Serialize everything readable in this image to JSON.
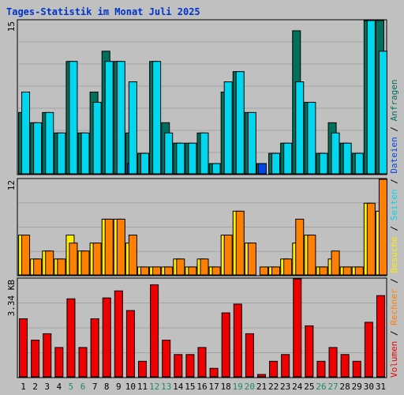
{
  "title": "Tages-Statistik im Monat Juli 2025",
  "colors": {
    "background": "#c0c0c0",
    "title": "#0033cc",
    "anfragen": "#006f5b",
    "dateien": "#0045e6",
    "seiten": "#00d7ee",
    "besuche": "#ffee00",
    "rechner": "#ff8000",
    "volumen": "#ee0000",
    "weekend_day_label": "#1f8a6b",
    "weekday_label": "#000000"
  },
  "axis_labels": {
    "top_max": "15",
    "mid_max": "12",
    "bottom_max": "3.34 KB"
  },
  "legend": {
    "anfragen": "Anfragen",
    "dateien": "Dateien",
    "seiten": "Seiten",
    "besuche": "Besuche",
    "rechner": "Rechner",
    "volumen": "Volumen",
    "separator": " / "
  },
  "chart_data": [
    {
      "type": "bar",
      "panel": "top",
      "categories": [
        "1",
        "2",
        "3",
        "4",
        "5",
        "6",
        "7",
        "8",
        "9",
        "10",
        "11",
        "12",
        "13",
        "14",
        "15",
        "16",
        "17",
        "18",
        "19",
        "20",
        "21",
        "22",
        "23",
        "24",
        "25",
        "26",
        "27",
        "28",
        "29",
        "30",
        "31"
      ],
      "weekend_days": [
        5,
        6,
        12,
        13,
        19,
        20,
        26,
        27
      ],
      "ylim": [
        0,
        15
      ],
      "series": [
        {
          "name": "Anfragen",
          "values": [
            6,
            5,
            6,
            4,
            11,
            4,
            8,
            12,
            11,
            4,
            2,
            11,
            5,
            3,
            3,
            4,
            1,
            8,
            10,
            6,
            1,
            2,
            3,
            14,
            7,
            2,
            5,
            3,
            2,
            15,
            15
          ]
        },
        {
          "name": "Dateien",
          "values": [
            0,
            0,
            0,
            0,
            0,
            0,
            0,
            0,
            0,
            1,
            0,
            0,
            0,
            0,
            0,
            0,
            0,
            0,
            0,
            0,
            1,
            0,
            0,
            0,
            0,
            0,
            0,
            0,
            0,
            0,
            0
          ]
        },
        {
          "name": "Seiten",
          "values": [
            8,
            5,
            6,
            4,
            11,
            4,
            7,
            11,
            11,
            9,
            2,
            11,
            4,
            3,
            3,
            4,
            1,
            9,
            10,
            6,
            0,
            2,
            3,
            9,
            7,
            2,
            4,
            3,
            2,
            15,
            12
          ]
        }
      ]
    },
    {
      "type": "bar",
      "panel": "middle",
      "categories": [
        "1",
        "2",
        "3",
        "4",
        "5",
        "6",
        "7",
        "8",
        "9",
        "10",
        "11",
        "12",
        "13",
        "14",
        "15",
        "16",
        "17",
        "18",
        "19",
        "20",
        "21",
        "22",
        "23",
        "24",
        "25",
        "26",
        "27",
        "28",
        "29",
        "30",
        "31"
      ],
      "ylim": [
        0,
        12
      ],
      "series": [
        {
          "name": "Besuche",
          "values": [
            5,
            2,
            3,
            2,
            5,
            3,
            4,
            7,
            7,
            4,
            1,
            1,
            1,
            2,
            1,
            2,
            1,
            5,
            8,
            4,
            0,
            1,
            2,
            4,
            5,
            1,
            2,
            1,
            1,
            9,
            8
          ]
        },
        {
          "name": "Rechner",
          "values": [
            5,
            2,
            3,
            2,
            4,
            3,
            4,
            7,
            7,
            5,
            1,
            1,
            1,
            2,
            1,
            2,
            1,
            5,
            8,
            4,
            1,
            1,
            2,
            7,
            5,
            1,
            3,
            1,
            1,
            9,
            12
          ]
        }
      ]
    },
    {
      "type": "bar",
      "panel": "bottom",
      "categories": [
        "1",
        "2",
        "3",
        "4",
        "5",
        "6",
        "7",
        "8",
        "9",
        "10",
        "11",
        "12",
        "13",
        "14",
        "15",
        "16",
        "17",
        "18",
        "19",
        "20",
        "21",
        "22",
        "23",
        "24",
        "25",
        "26",
        "27",
        "28",
        "29",
        "30",
        "31"
      ],
      "ylim": [
        0,
        3.34
      ],
      "ylabel": "KB",
      "series": [
        {
          "name": "Volumen",
          "values": [
            1.98,
            1.25,
            1.47,
            1.0,
            2.66,
            1.0,
            1.98,
            2.69,
            2.93,
            2.26,
            0.53,
            3.14,
            1.25,
            0.76,
            0.76,
            1.0,
            0.29,
            2.18,
            2.48,
            1.47,
            0.08,
            0.53,
            0.76,
            3.38,
            1.74,
            0.53,
            1.0,
            0.76,
            0.53,
            1.86,
            2.77
          ]
        }
      ]
    }
  ]
}
